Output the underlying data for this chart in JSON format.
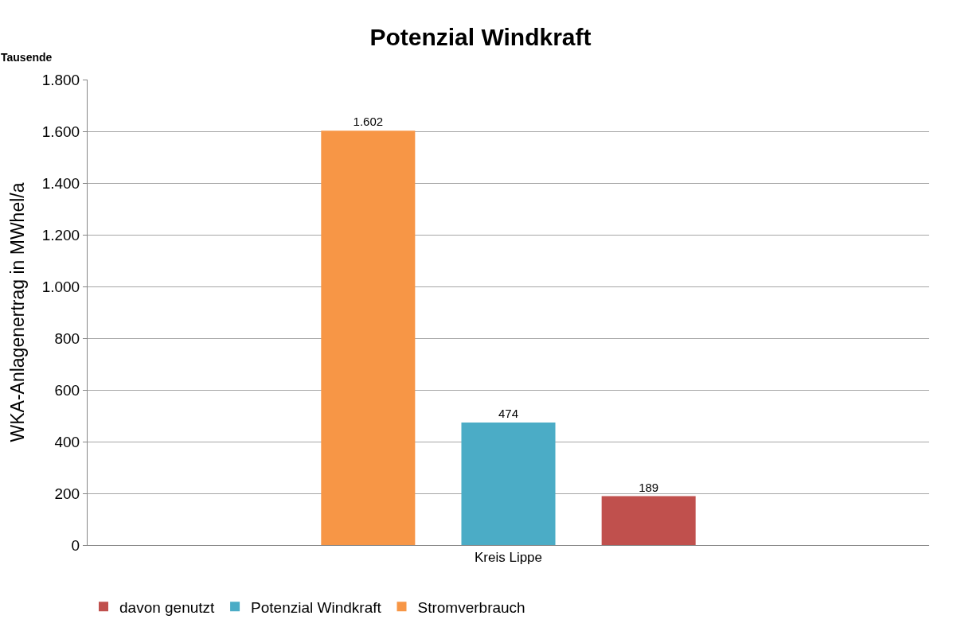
{
  "chart_data": {
    "type": "bar",
    "title": "Potenzial Windkraft",
    "ylabel": "WKA-Anlagenertrag in MWhel/a",
    "annotations": [
      "Tausende"
    ],
    "categories": [
      "Kreis Lippe"
    ],
    "series": [
      {
        "name": "Stromverbrauch",
        "color": "#f79646",
        "values": [
          1602
        ],
        "value_labels": [
          "1.602"
        ]
      },
      {
        "name": "Potenzial Windkraft",
        "color": "#4bacc6",
        "values": [
          474
        ],
        "value_labels": [
          "474"
        ]
      },
      {
        "name": "davon genutzt",
        "color": "#c0504d",
        "values": [
          189
        ],
        "value_labels": [
          "189"
        ]
      }
    ],
    "ylim": [
      0,
      1800
    ],
    "yticks": [
      0,
      {
        "value": 200,
        "label": "200"
      },
      {
        "value": 400,
        "label": "400"
      },
      {
        "value": 600,
        "label": "600"
      },
      {
        "value": 800,
        "label": "800"
      },
      {
        "value": 1000,
        "label": "1.000"
      },
      {
        "value": 1200,
        "label": "1.200"
      },
      {
        "value": 1400,
        "label": "1.400"
      },
      {
        "value": 1600,
        "label": "1.600"
      },
      {
        "value": 1800,
        "label": "1.800"
      }
    ],
    "grid": "y",
    "legend": "bottom"
  }
}
